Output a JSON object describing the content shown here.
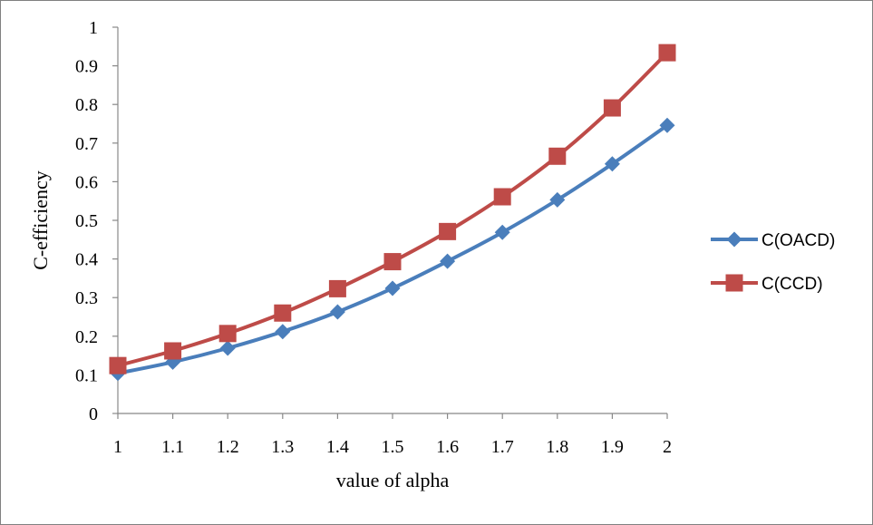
{
  "chart_data": {
    "type": "line",
    "title": "",
    "xlabel": "value of alpha",
    "ylabel": "C-efficiency",
    "x": [
      1,
      1.1,
      1.2,
      1.3,
      1.4,
      1.5,
      1.6,
      1.7,
      1.8,
      1.9,
      2
    ],
    "x_tick_labels": [
      "1",
      "1.1",
      "1.2",
      "1.3",
      "1.4",
      "1.5",
      "1.6",
      "1.7",
      "1.8",
      "1.9",
      "2"
    ],
    "ylim": [
      0,
      1
    ],
    "y_tick_labels": [
      "0",
      "0.1",
      "0.2",
      "0.3",
      "0.4",
      "0.5",
      "0.6",
      "0.7",
      "0.8",
      "0.9",
      "1"
    ],
    "grid": false,
    "legend_position": "right",
    "series": [
      {
        "name": "C(OACD)",
        "marker": "diamond",
        "color": "#4A7EBB",
        "values": [
          0.104,
          0.133,
          0.169,
          0.212,
          0.263,
          0.324,
          0.394,
          0.469,
          0.553,
          0.646,
          0.746
        ]
      },
      {
        "name": "C(CCD)",
        "marker": "square",
        "color": "#BE4B48",
        "values": [
          0.124,
          0.162,
          0.207,
          0.26,
          0.323,
          0.393,
          0.471,
          0.561,
          0.666,
          0.791,
          0.934
        ]
      }
    ]
  }
}
